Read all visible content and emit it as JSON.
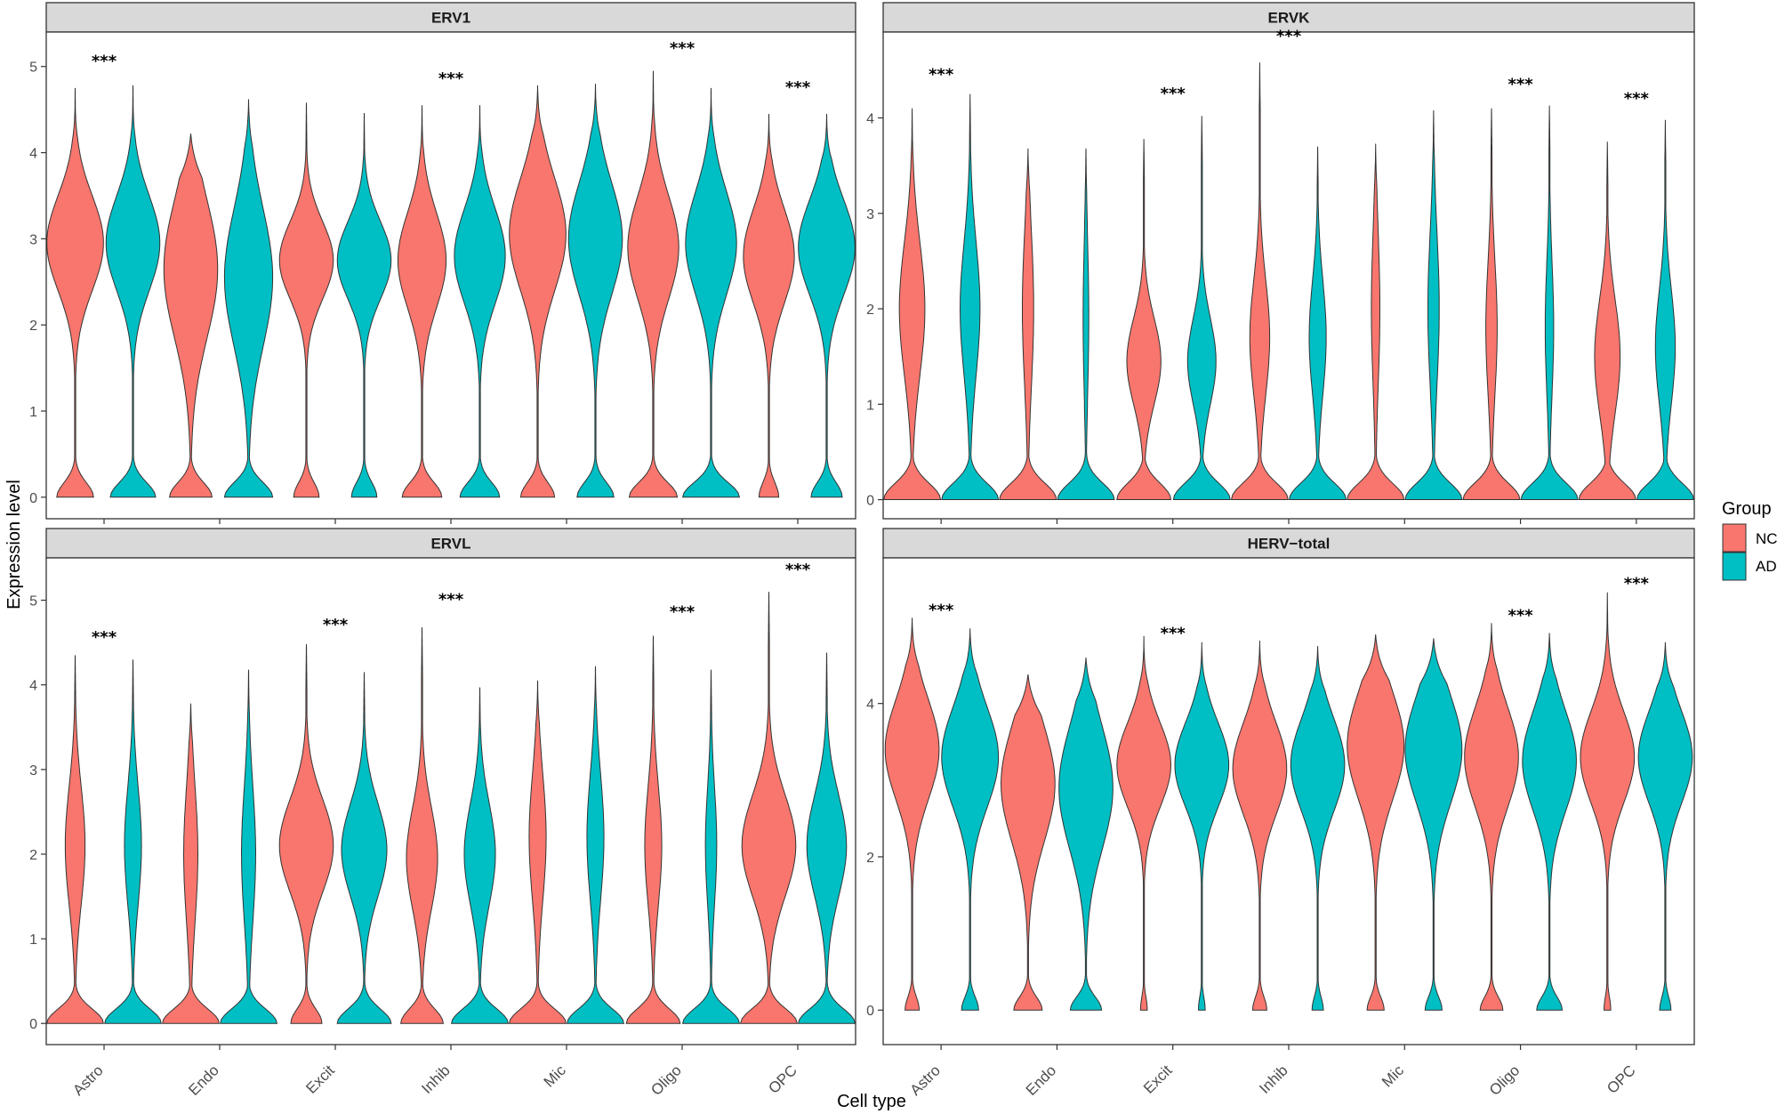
{
  "chart_data": {
    "type": "violin",
    "xlabel": "Cell type",
    "ylabel": "Expression level",
    "categories": [
      "Astro",
      "Endo",
      "Excit",
      "Inhib",
      "Mic",
      "Oligo",
      "OPC"
    ],
    "groups": [
      {
        "name": "NC",
        "color": "#F8766D"
      },
      {
        "name": "AD",
        "color": "#00BFC4"
      }
    ],
    "legend": {
      "title": "Group",
      "position": "right",
      "labels": [
        "NC",
        "AD"
      ]
    },
    "significance_label": "***",
    "panels": [
      {
        "title": "ERV1",
        "ylim": [
          -0.25,
          5.4
        ],
        "yticks": [
          0,
          1,
          2,
          3,
          4,
          5
        ],
        "significant": [
          "Astro",
          "Inhib",
          "Oligo",
          "OPC"
        ],
        "sig_y": [
          5.0,
          4.8,
          5.15,
          4.7
        ],
        "violins": {
          "NC": [
            {
              "max": 4.75,
              "mode": 2.95,
              "zero_w": 0.65,
              "body_w": 1.0,
              "spread": 0.55
            },
            {
              "max": 4.22,
              "mode": 2.65,
              "zero_w": 0.75,
              "body_w": 0.95,
              "spread": 0.8
            },
            {
              "max": 4.58,
              "mode": 2.75,
              "zero_w": 0.45,
              "body_w": 0.95,
              "spread": 0.45
            },
            {
              "max": 4.55,
              "mode": 2.75,
              "zero_w": 0.7,
              "body_w": 0.85,
              "spread": 0.55
            },
            {
              "max": 4.78,
              "mode": 3.05,
              "zero_w": 0.6,
              "body_w": 1.0,
              "spread": 0.65
            },
            {
              "max": 4.95,
              "mode": 2.9,
              "zero_w": 0.85,
              "body_w": 0.9,
              "spread": 0.6
            },
            {
              "max": 4.45,
              "mode": 2.8,
              "zero_w": 0.35,
              "body_w": 0.9,
              "spread": 0.55
            }
          ],
          "AD": [
            {
              "max": 4.78,
              "mode": 2.95,
              "zero_w": 0.8,
              "body_w": 0.95,
              "spread": 0.55
            },
            {
              "max": 4.62,
              "mode": 2.55,
              "zero_w": 0.85,
              "body_w": 0.85,
              "spread": 0.8
            },
            {
              "max": 4.46,
              "mode": 2.75,
              "zero_w": 0.45,
              "body_w": 0.95,
              "spread": 0.45
            },
            {
              "max": 4.55,
              "mode": 2.8,
              "zero_w": 0.7,
              "body_w": 0.9,
              "spread": 0.55
            },
            {
              "max": 4.8,
              "mode": 3.0,
              "zero_w": 0.65,
              "body_w": 0.95,
              "spread": 0.65
            },
            {
              "max": 4.75,
              "mode": 2.95,
              "zero_w": 1.0,
              "body_w": 0.9,
              "spread": 0.6
            },
            {
              "max": 4.45,
              "mode": 2.9,
              "zero_w": 0.55,
              "body_w": 1.0,
              "spread": 0.55
            }
          ]
        }
      },
      {
        "title": "ERVK",
        "ylim": [
          -0.2,
          4.9
        ],
        "yticks": [
          0,
          1,
          2,
          3,
          4
        ],
        "significant": [
          "Astro",
          "Excit",
          "Inhib",
          "Oligo",
          "OPC"
        ],
        "sig_y": [
          4.4,
          4.2,
          4.8,
          4.3,
          4.15
        ],
        "violins": {
          "NC": [
            {
              "max": 4.1,
              "mode": 2.0,
              "zero_w": 1.0,
              "body_w": 0.45,
              "spread": 0.7
            },
            {
              "max": 3.68,
              "mode": 2.0,
              "zero_w": 1.0,
              "body_w": 0.2,
              "spread": 0.8
            },
            {
              "max": 3.78,
              "mode": 1.45,
              "zero_w": 0.95,
              "body_w": 0.6,
              "spread": 0.45
            },
            {
              "max": 4.58,
              "mode": 1.7,
              "zero_w": 1.0,
              "body_w": 0.35,
              "spread": 0.6
            },
            {
              "max": 3.73,
              "mode": 2.0,
              "zero_w": 1.0,
              "body_w": 0.15,
              "spread": 0.8
            },
            {
              "max": 4.1,
              "mode": 1.8,
              "zero_w": 1.0,
              "body_w": 0.2,
              "spread": 0.7
            },
            {
              "max": 3.75,
              "mode": 1.5,
              "zero_w": 1.0,
              "body_w": 0.45,
              "spread": 0.6
            }
          ],
          "AD": [
            {
              "max": 4.25,
              "mode": 2.0,
              "zero_w": 1.0,
              "body_w": 0.35,
              "spread": 0.7
            },
            {
              "max": 3.68,
              "mode": 1.9,
              "zero_w": 1.0,
              "body_w": 0.1,
              "spread": 0.8
            },
            {
              "max": 4.02,
              "mode": 1.45,
              "zero_w": 1.0,
              "body_w": 0.5,
              "spread": 0.45
            },
            {
              "max": 3.7,
              "mode": 1.7,
              "zero_w": 1.0,
              "body_w": 0.3,
              "spread": 0.6
            },
            {
              "max": 4.08,
              "mode": 2.0,
              "zero_w": 1.0,
              "body_w": 0.2,
              "spread": 0.8
            },
            {
              "max": 4.13,
              "mode": 1.8,
              "zero_w": 1.0,
              "body_w": 0.15,
              "spread": 0.7
            },
            {
              "max": 3.98,
              "mode": 1.6,
              "zero_w": 1.0,
              "body_w": 0.35,
              "spread": 0.6
            }
          ]
        }
      },
      {
        "title": "ERVL",
        "ylim": [
          -0.25,
          5.5
        ],
        "yticks": [
          0,
          1,
          2,
          3,
          4,
          5
        ],
        "significant": [
          "Astro",
          "Excit",
          "Inhib",
          "Oligo",
          "OPC"
        ],
        "sig_y": [
          4.5,
          4.65,
          4.95,
          4.8,
          5.3
        ],
        "violins": {
          "NC": [
            {
              "max": 4.35,
              "mode": 2.1,
              "zero_w": 1.0,
              "body_w": 0.35,
              "spread": 0.7
            },
            {
              "max": 3.78,
              "mode": 2.0,
              "zero_w": 1.0,
              "body_w": 0.25,
              "spread": 0.8
            },
            {
              "max": 4.48,
              "mode": 2.1,
              "zero_w": 0.55,
              "body_w": 0.95,
              "spread": 0.55
            },
            {
              "max": 4.68,
              "mode": 1.95,
              "zero_w": 0.75,
              "body_w": 0.55,
              "spread": 0.6
            },
            {
              "max": 4.05,
              "mode": 2.2,
              "zero_w": 1.0,
              "body_w": 0.3,
              "spread": 0.75
            },
            {
              "max": 4.58,
              "mode": 2.1,
              "zero_w": 0.95,
              "body_w": 0.3,
              "spread": 0.7
            },
            {
              "max": 5.1,
              "mode": 2.1,
              "zero_w": 1.0,
              "body_w": 0.95,
              "spread": 0.6
            }
          ],
          "AD": [
            {
              "max": 4.3,
              "mode": 2.1,
              "zero_w": 1.0,
              "body_w": 0.3,
              "spread": 0.7
            },
            {
              "max": 4.18,
              "mode": 2.0,
              "zero_w": 1.0,
              "body_w": 0.25,
              "spread": 0.8
            },
            {
              "max": 4.15,
              "mode": 2.05,
              "zero_w": 0.95,
              "body_w": 0.8,
              "spread": 0.55
            },
            {
              "max": 3.97,
              "mode": 2.0,
              "zero_w": 1.0,
              "body_w": 0.55,
              "spread": 0.6
            },
            {
              "max": 4.22,
              "mode": 2.2,
              "zero_w": 1.0,
              "body_w": 0.3,
              "spread": 0.75
            },
            {
              "max": 4.18,
              "mode": 2.1,
              "zero_w": 1.0,
              "body_w": 0.2,
              "spread": 0.7
            },
            {
              "max": 4.38,
              "mode": 2.1,
              "zero_w": 1.0,
              "body_w": 0.7,
              "spread": 0.6
            }
          ]
        }
      },
      {
        "title": "HERV−total",
        "ylim": [
          -0.45,
          5.9
        ],
        "yticks": [
          0,
          2,
          4
        ],
        "significant": [
          "Astro",
          "Excit",
          "Oligo",
          "OPC"
        ],
        "sig_y": [
          5.15,
          4.85,
          5.08,
          5.5
        ],
        "violins": {
          "NC": [
            {
              "max": 5.12,
              "mode": 3.4,
              "zero_w": 0.25,
              "body_w": 0.95,
              "spread": 0.65
            },
            {
              "max": 4.38,
              "mode": 2.95,
              "zero_w": 0.5,
              "body_w": 0.95,
              "spread": 0.75
            },
            {
              "max": 4.88,
              "mode": 3.2,
              "zero_w": 0.12,
              "body_w": 0.95,
              "spread": 0.55
            },
            {
              "max": 4.82,
              "mode": 3.15,
              "zero_w": 0.25,
              "body_w": 0.95,
              "spread": 0.6
            },
            {
              "max": 4.9,
              "mode": 3.45,
              "zero_w": 0.3,
              "body_w": 1.0,
              "spread": 0.7
            },
            {
              "max": 5.05,
              "mode": 3.3,
              "zero_w": 0.4,
              "body_w": 0.95,
              "spread": 0.65
            },
            {
              "max": 5.45,
              "mode": 3.3,
              "zero_w": 0.12,
              "body_w": 0.95,
              "spread": 0.6
            }
          ],
          "AD": [
            {
              "max": 4.98,
              "mode": 3.3,
              "zero_w": 0.3,
              "body_w": 1.0,
              "spread": 0.65
            },
            {
              "max": 4.6,
              "mode": 2.9,
              "zero_w": 0.55,
              "body_w": 0.95,
              "spread": 0.8
            },
            {
              "max": 4.8,
              "mode": 3.2,
              "zero_w": 0.12,
              "body_w": 0.95,
              "spread": 0.55
            },
            {
              "max": 4.75,
              "mode": 3.2,
              "zero_w": 0.2,
              "body_w": 0.95,
              "spread": 0.6
            },
            {
              "max": 4.85,
              "mode": 3.4,
              "zero_w": 0.3,
              "body_w": 1.0,
              "spread": 0.7
            },
            {
              "max": 4.92,
              "mode": 3.25,
              "zero_w": 0.45,
              "body_w": 0.95,
              "spread": 0.65
            },
            {
              "max": 4.8,
              "mode": 3.3,
              "zero_w": 0.2,
              "body_w": 0.95,
              "spread": 0.6
            }
          ]
        }
      }
    ]
  }
}
